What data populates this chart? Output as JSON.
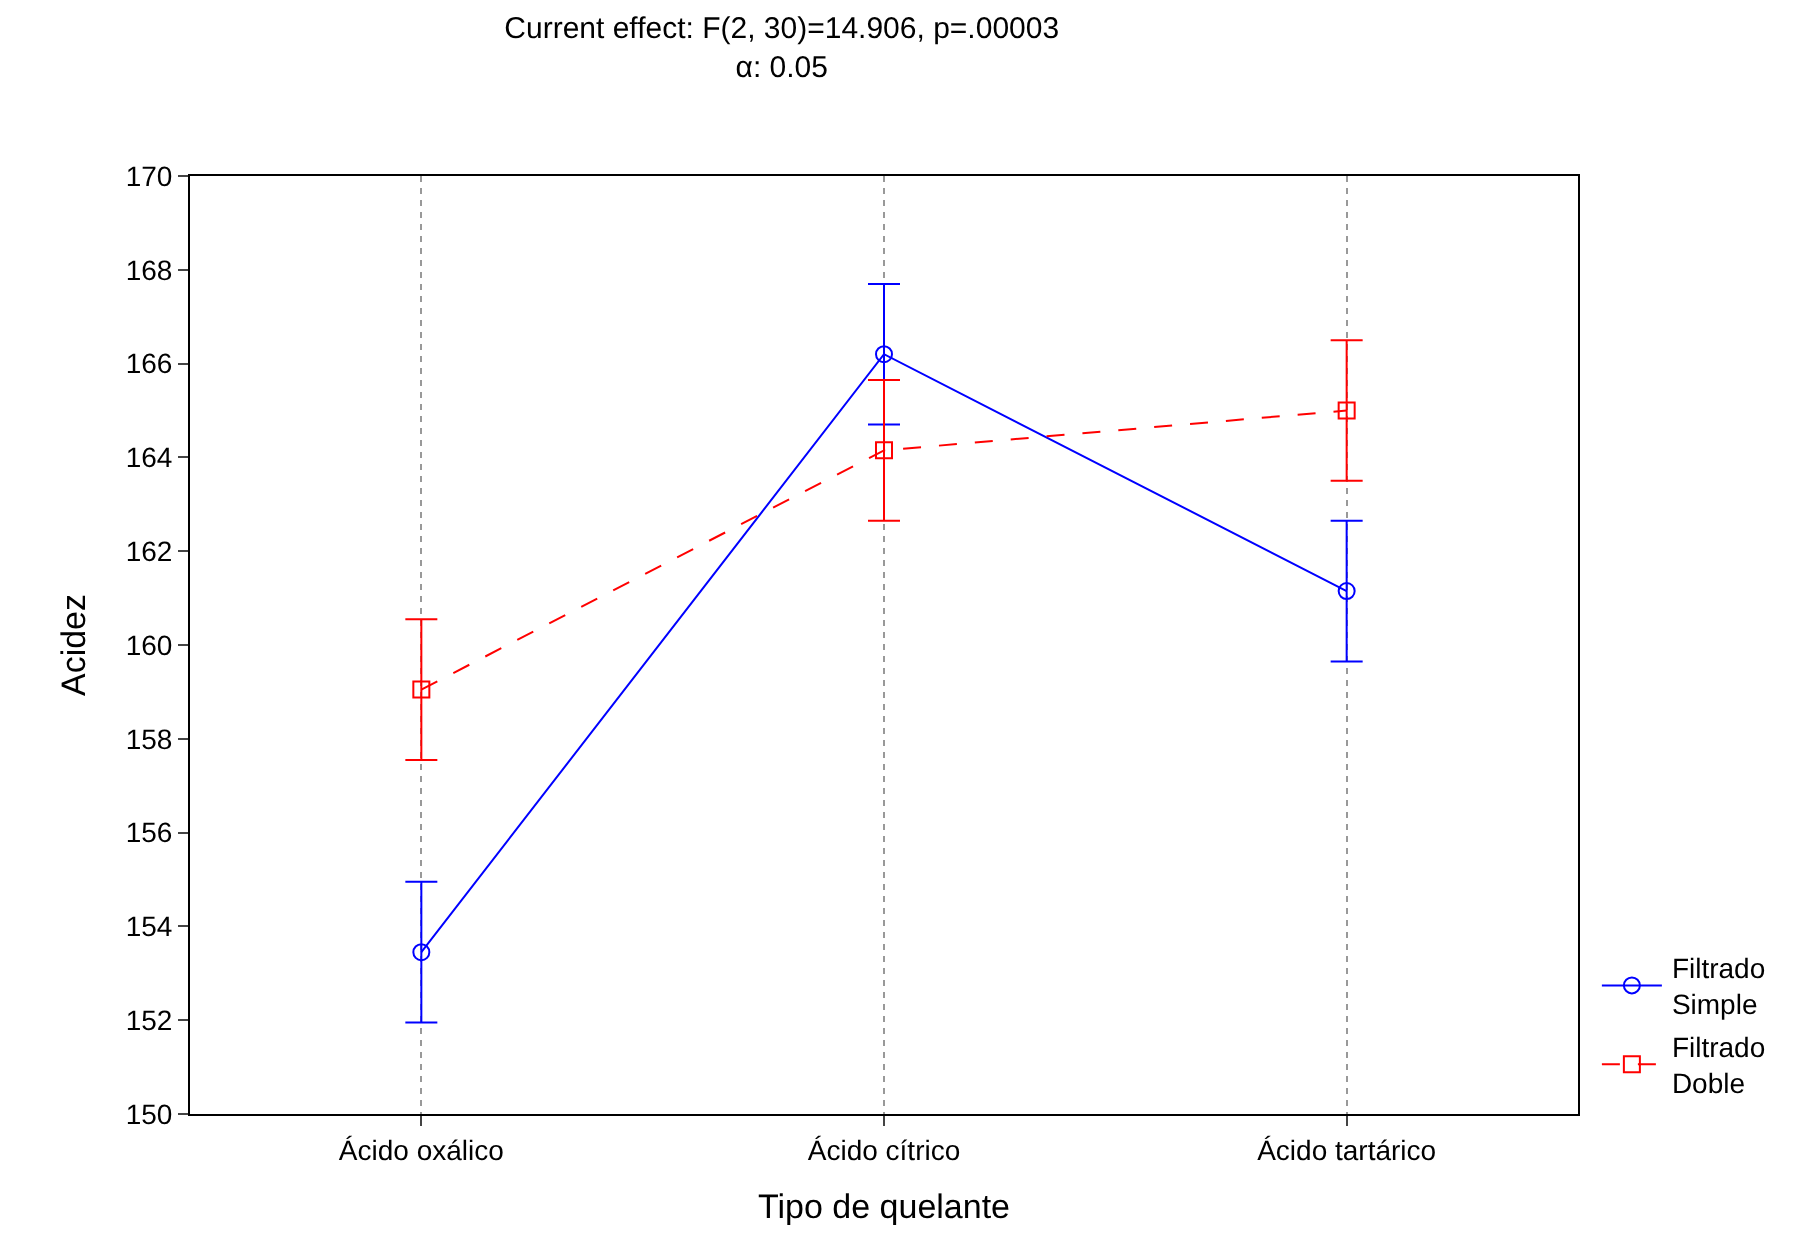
{
  "chart_data": {
    "type": "line",
    "title": "Current effect: F(2, 30)=14.906, p=.00003",
    "subtitle": "α: 0.05",
    "xlabel": "Tipo de quelante",
    "ylabel": "Acidez",
    "categories": [
      "Ácido oxálico",
      "Ácido cítrico",
      "Ácido tartárico"
    ],
    "series": [
      {
        "name": "Filtrado Simple",
        "color": "#0000ff",
        "values": [
          153.45,
          166.2,
          161.15
        ],
        "errors": [
          1.5,
          1.5,
          1.5
        ],
        "marker": "circle",
        "line_style": "solid"
      },
      {
        "name": "Filtrado Doble",
        "color": "#ff0000",
        "values": [
          159.05,
          164.15,
          165.0
        ],
        "errors": [
          1.5,
          1.5,
          1.5
        ],
        "marker": "square",
        "line_style": "dashed"
      }
    ],
    "ylim": [
      150,
      170
    ],
    "yticks": [
      150,
      152,
      154,
      156,
      158,
      160,
      162,
      164,
      166,
      168,
      170
    ],
    "grid": "x",
    "legend": "bottom right"
  }
}
